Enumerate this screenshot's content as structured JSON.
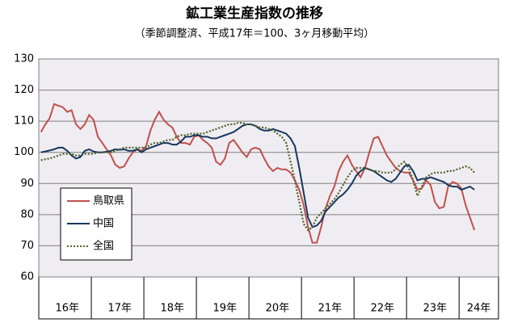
{
  "chart_data": {
    "type": "line",
    "title": "鉱工業生産指数の推移",
    "subtitle": "（季節調整済、平成17年＝100、3ヶ月移動平均）",
    "categories": [
      null,
      null,
      null,
      null,
      null,
      null,
      "16年",
      null,
      null,
      null,
      null,
      null,
      null,
      null,
      null,
      null,
      null,
      null,
      "17年",
      null,
      null,
      null,
      null,
      null,
      null,
      null,
      null,
      null,
      null,
      null,
      "18年",
      null,
      null,
      null,
      null,
      null,
      null,
      null,
      null,
      null,
      null,
      null,
      "19年",
      null,
      null,
      null,
      null,
      null,
      null,
      null,
      null,
      null,
      null,
      null,
      "20年",
      null,
      null,
      null,
      null,
      null,
      null,
      null,
      null,
      null,
      null,
      null,
      "21年",
      null,
      null,
      null,
      null,
      null,
      null,
      null,
      null,
      null,
      null,
      null,
      "22年",
      null,
      null,
      null,
      null,
      null,
      null,
      null,
      null,
      null,
      null,
      null,
      "23年",
      null,
      null,
      null,
      null,
      null,
      null,
      null,
      null,
      null,
      "24年",
      null,
      null,
      null,
      null
    ],
    "series": [
      {
        "name": "鳥取県",
        "color": "#c0504d",
        "dash": false,
        "values": [
          106.5,
          109,
          111,
          115.5,
          115,
          114.5,
          113,
          113.5,
          109,
          107.5,
          109,
          112,
          110.5,
          105,
          103,
          101,
          99,
          96,
          95,
          95.5,
          98,
          100,
          101,
          100.5,
          102,
          107,
          110.5,
          113,
          110.5,
          109,
          108,
          105,
          103,
          103,
          102.5,
          105,
          105.5,
          104,
          103,
          101.5,
          97,
          96,
          98,
          103,
          104,
          102,
          100,
          98.5,
          101,
          101.5,
          101,
          98,
          95.5,
          94,
          95,
          94.5,
          94.5,
          93.5,
          91,
          88,
          83,
          76,
          71,
          71,
          76,
          82,
          86,
          89,
          94,
          97,
          99,
          96,
          94,
          92,
          95,
          100,
          104.5,
          105,
          102,
          99,
          97,
          95,
          94,
          93.5,
          93.5,
          91,
          88,
          88.5,
          91,
          89.5,
          84,
          82,
          82.5,
          89,
          90.5,
          90,
          88.5,
          83,
          79,
          75,
          null,
          null,
          null,
          null,
          null
        ]
      },
      {
        "name": "中国",
        "color": "#17375e",
        "dash": false,
        "values": [
          100,
          100.3,
          100.6,
          101,
          101.5,
          101.5,
          100.5,
          99,
          98,
          98.5,
          100.5,
          101,
          100.3,
          100,
          100,
          100.2,
          100.5,
          101,
          100.8,
          101,
          100.5,
          100.5,
          101,
          100,
          101,
          101.5,
          102,
          102.5,
          103,
          103,
          102.5,
          102.5,
          103.5,
          105,
          105,
          105.5,
          105.5,
          105,
          105,
          104.5,
          104.5,
          105,
          105.5,
          106,
          106.5,
          107.5,
          108.5,
          109,
          109,
          108.5,
          107.5,
          107,
          107,
          107.5,
          107,
          106.5,
          106,
          104.5,
          102,
          95,
          87,
          79,
          76,
          76.5,
          78,
          81,
          82.5,
          84,
          85.5,
          86.5,
          88,
          90,
          92.5,
          94,
          95,
          94.5,
          94,
          93,
          92,
          91,
          90.5,
          91.5,
          93.5,
          95.5,
          96,
          94,
          91,
          91.5,
          91.5,
          92,
          91.5,
          91,
          90.5,
          89.5,
          89,
          89,
          88,
          88.5,
          89,
          88,
          null,
          null,
          null,
          null,
          null
        ]
      },
      {
        "name": "全国",
        "color": "#4f6228",
        "dash": true,
        "values": [
          97.5,
          97.8,
          98,
          98.5,
          99,
          99.5,
          99.5,
          99.5,
          99,
          99,
          99.5,
          99.5,
          99.5,
          100,
          100,
          100,
          100,
          100.5,
          101,
          101.5,
          101.5,
          101.5,
          101.5,
          101.5,
          101.5,
          102.5,
          103,
          103,
          103.5,
          104,
          104,
          105,
          105.5,
          105.5,
          106,
          106,
          106,
          106,
          106.5,
          107,
          107.5,
          108,
          108.5,
          109,
          109,
          109.5,
          109.5,
          109,
          109,
          108.5,
          108,
          108,
          107.5,
          107,
          106,
          105,
          103,
          97,
          91,
          84,
          77,
          75,
          76,
          79,
          80.5,
          82,
          83.5,
          85,
          87,
          89.5,
          92,
          94,
          95,
          95,
          95,
          94.5,
          94,
          94,
          93.5,
          93.5,
          93.5,
          94.5,
          96,
          97,
          95,
          91,
          86,
          89,
          92,
          93,
          93.5,
          93.5,
          93.5,
          94,
          94,
          94.5,
          95,
          95.5,
          95,
          93.5,
          null,
          null,
          null,
          null,
          null
        ]
      }
    ],
    "ylim": [
      60,
      130
    ],
    "yticks": [
      60,
      70,
      80,
      90,
      100,
      110,
      120,
      130
    ],
    "grid": true,
    "legend": "lower left"
  }
}
